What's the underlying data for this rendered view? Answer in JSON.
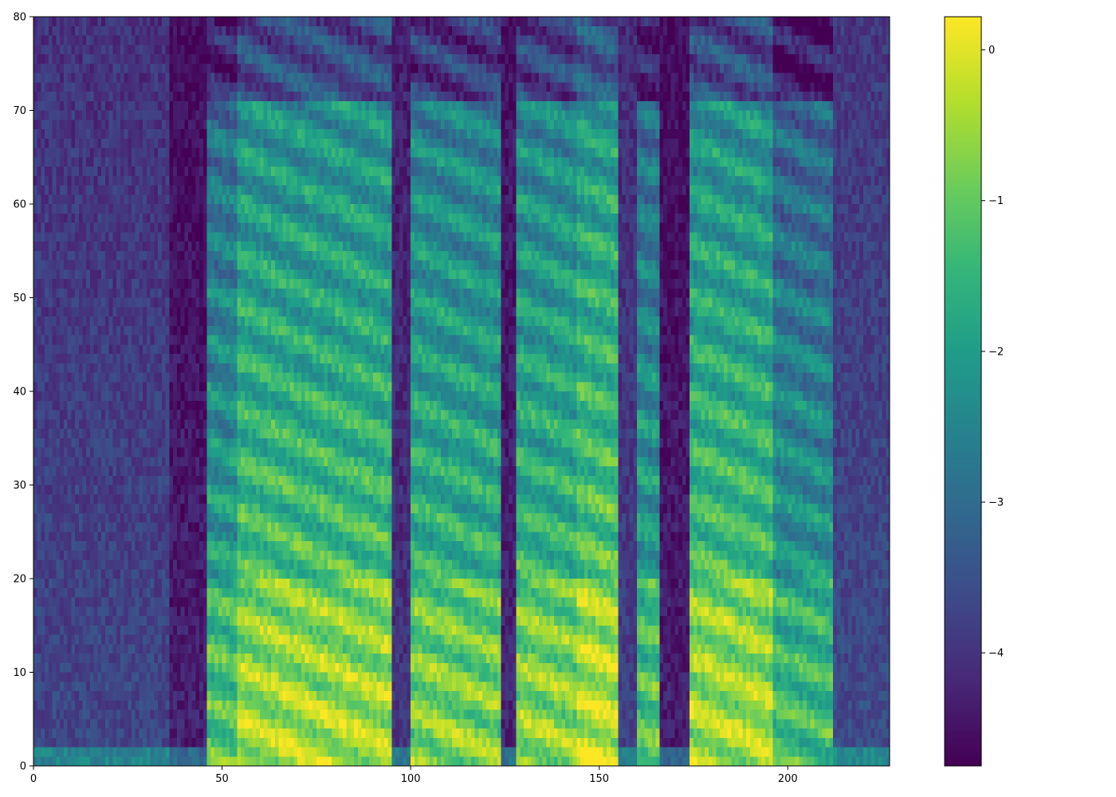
{
  "chart_data": {
    "type": "heatmap",
    "title": "",
    "xlabel": "",
    "ylabel": "",
    "xlim": [
      0,
      227
    ],
    "ylim": [
      0,
      80
    ],
    "n_frames": 227,
    "n_bins": 80,
    "x_ticks": [
      0,
      50,
      100,
      150,
      200
    ],
    "x_tick_labels": [
      "0",
      "50",
      "100",
      "150",
      "200"
    ],
    "y_ticks": [
      0,
      10,
      20,
      30,
      40,
      50,
      60,
      70,
      80
    ],
    "y_tick_labels": [
      "0",
      "10",
      "20",
      "30",
      "40",
      "50",
      "60",
      "70",
      "80"
    ],
    "colorbar": {
      "colormap": "viridis",
      "vmin": -4.75,
      "vmax": 0.22,
      "ticks": [
        0,
        -1,
        -2,
        -3,
        -4
      ],
      "tick_labels": [
        "0",
        "−1",
        "−2",
        "−3",
        "−4"
      ]
    },
    "segments": [
      {
        "start": 0,
        "end": 36,
        "level": -3.7,
        "description": "leading silence"
      },
      {
        "start": 36,
        "end": 46,
        "level": -4.3,
        "description": "dark gap"
      },
      {
        "start": 46,
        "end": 54,
        "level": -1.6,
        "description": "fricative band"
      },
      {
        "start": 54,
        "end": 95,
        "level": -0.9,
        "description": "voiced segment with harmonics"
      },
      {
        "start": 95,
        "end": 100,
        "level": -4.0,
        "description": "gap"
      },
      {
        "start": 100,
        "end": 124,
        "level": -1.2,
        "description": "voiced segment"
      },
      {
        "start": 124,
        "end": 128,
        "level": -4.2,
        "description": "gap"
      },
      {
        "start": 128,
        "end": 144,
        "level": -1.1,
        "description": "voiced segment"
      },
      {
        "start": 144,
        "end": 155,
        "level": -0.7,
        "description": "voiced peak"
      },
      {
        "start": 155,
        "end": 160,
        "level": -3.8,
        "description": "gap"
      },
      {
        "start": 160,
        "end": 166,
        "level": -1.6,
        "description": "short burst"
      },
      {
        "start": 166,
        "end": 174,
        "level": -4.3,
        "description": "gap"
      },
      {
        "start": 174,
        "end": 196,
        "level": -0.9,
        "description": "voiced segment"
      },
      {
        "start": 196,
        "end": 212,
        "level": -1.8,
        "description": "tail band"
      },
      {
        "start": 212,
        "end": 227,
        "level": -3.6,
        "description": "trailing silence"
      }
    ]
  }
}
